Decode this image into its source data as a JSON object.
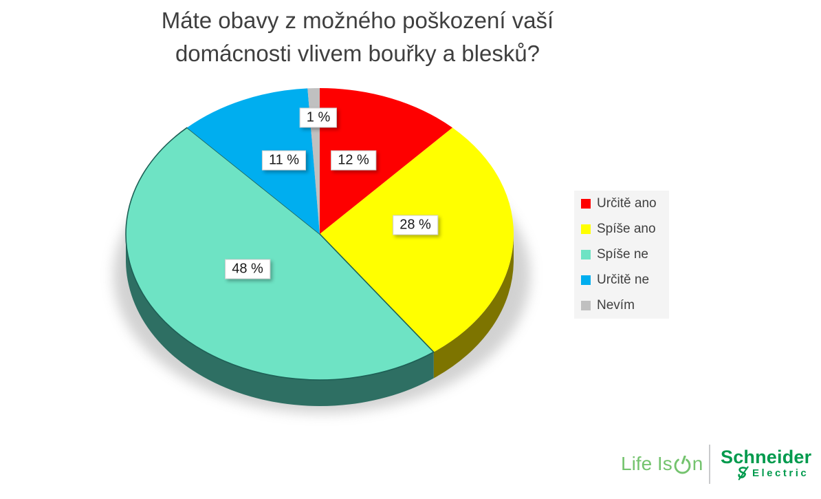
{
  "title": {
    "text": "Máte obavy z možného poškození vaší domácnosti vlivem bouřky a blesků?",
    "line1": "Máte obavy z možného poškození vaší",
    "line2": "domácnosti vlivem bouřky a blesků?",
    "color": "#3f3f3f"
  },
  "chart_data": {
    "type": "pie",
    "style": "3d",
    "title": "Máte obavy z možného poškození vaší domácnosti vlivem bouřky a blesků?",
    "unit": "%",
    "start_angle_deg": 0,
    "direction": "clockwise",
    "legend_position": "right",
    "slices": [
      {
        "label": "Určitě ano",
        "value": 12,
        "data_label": "12 %",
        "color": "#fe0000",
        "side_color": "#8a1010",
        "edge_color": "none"
      },
      {
        "label": "Spíše ano",
        "value": 28,
        "data_label": "28 %",
        "color": "#ffff00",
        "side_color": "#7d7400",
        "edge_color": "none"
      },
      {
        "label": "Spíše ne",
        "value": 48,
        "data_label": "48 %",
        "color": "#6ee3c4",
        "side_color": "#2e6f63",
        "edge_color": "#1d5f55"
      },
      {
        "label": "Určitě ne",
        "value": 11,
        "data_label": "11 %",
        "color": "#00aeef",
        "side_color": "#0b6a93",
        "edge_color": "none"
      },
      {
        "label": "Nevím",
        "value": 1,
        "data_label": "1 %",
        "color": "#c0c0c0",
        "side_color": "#8c8c8c",
        "edge_color": "none"
      }
    ]
  },
  "legend": {
    "background": "#f4f4f4",
    "text_color": "#3f3f3f"
  },
  "footer": {
    "life_is_on": {
      "text": "Life Is On",
      "prefix": "Life Is ",
      "suffix": "n",
      "color": "#74c36e",
      "power_icon": "power-icon"
    },
    "schneider": {
      "name": "Schneider",
      "sub": "Electric",
      "color": "#009a4d",
      "emblem_icon": "schneider-emblem-icon"
    }
  }
}
